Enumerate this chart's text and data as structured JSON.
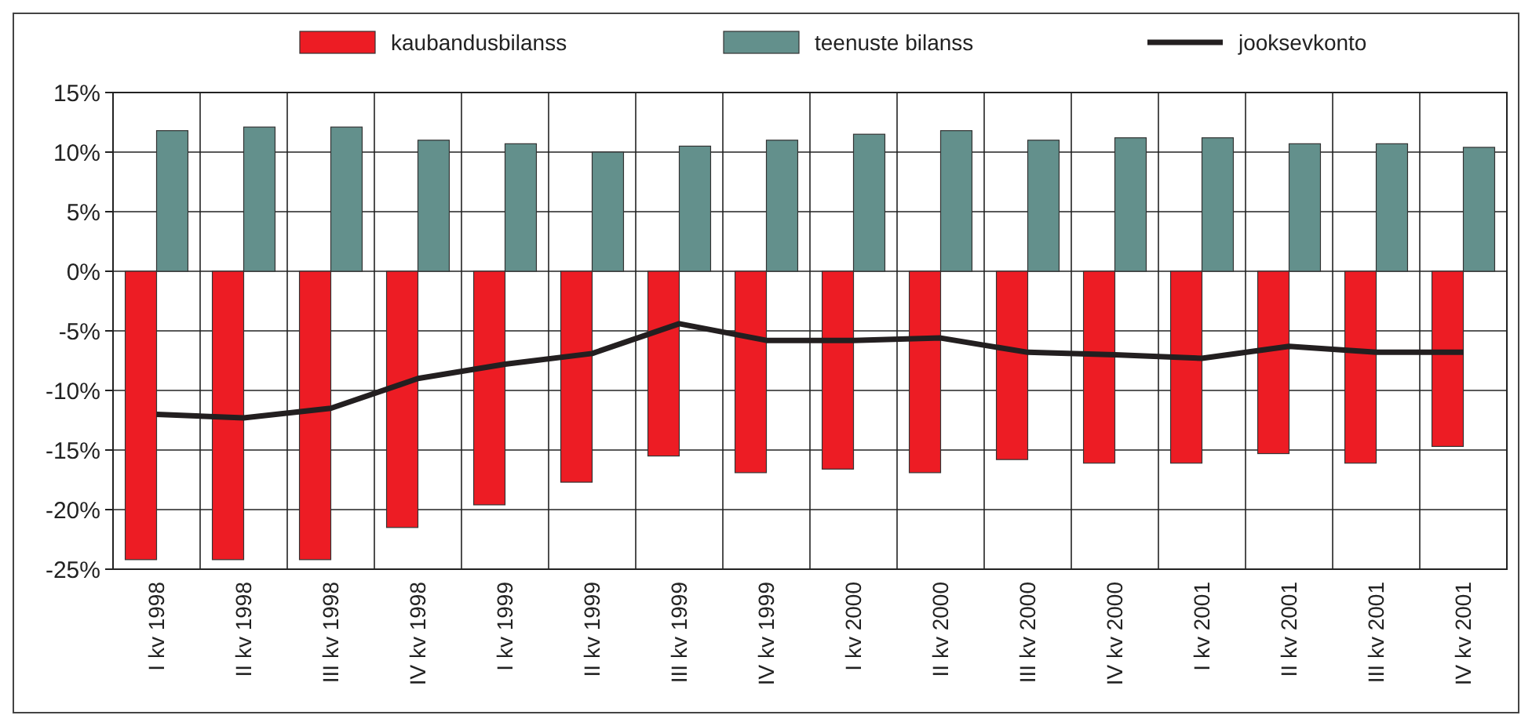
{
  "chart_data": {
    "type": "bar",
    "categories": [
      "I kv 1998",
      "II kv 1998",
      "III kv 1998",
      "IV kv 1998",
      "I kv 1999",
      "II kv 1999",
      "III kv 1999",
      "IV kv 1999",
      "I kv 2000",
      "II kv 2000",
      "III kv 2000",
      "IV kv 2000",
      "I kv 2001",
      "II kv 2001",
      "III kv 2001",
      "IV kv 2001"
    ],
    "series": [
      {
        "name": "kaubandusbilanss",
        "color": "#ed1c24",
        "values": [
          -24.2,
          -24.2,
          -24.2,
          -21.5,
          -19.6,
          -17.7,
          -15.5,
          -16.9,
          -16.6,
          -16.9,
          -15.8,
          -16.1,
          -16.1,
          -15.3,
          -16.1,
          -14.7
        ]
      },
      {
        "name": "teenuste bilanss",
        "color": "#63908c",
        "values": [
          11.8,
          12.1,
          12.1,
          11.0,
          10.7,
          10.0,
          10.5,
          11.0,
          11.5,
          11.8,
          11.0,
          11.2,
          11.2,
          10.7,
          10.7,
          10.4
        ]
      },
      {
        "name": "jooksevkonto",
        "type": "line",
        "color": "#231f20",
        "values": [
          -12.0,
          -12.3,
          -11.5,
          -9.0,
          -7.8,
          -6.9,
          -4.4,
          -5.8,
          -5.8,
          -5.6,
          -6.8,
          -7.0,
          -7.3,
          -6.3,
          -6.8,
          -6.8
        ]
      }
    ],
    "ylim": [
      -25,
      15
    ],
    "yticks": [
      {
        "value": -25,
        "label": "-25%"
      },
      {
        "value": -20,
        "label": "-20%"
      },
      {
        "value": -15,
        "label": "-15%"
      },
      {
        "value": -10,
        "label": "-10%"
      },
      {
        "value": -5,
        "label": "-5%"
      },
      {
        "value": 0,
        "label": "0%"
      },
      {
        "value": 5,
        "label": "5%"
      },
      {
        "value": 10,
        "label": "10%"
      },
      {
        "value": 15,
        "label": "15%"
      }
    ],
    "grid": true,
    "legend": "top"
  }
}
